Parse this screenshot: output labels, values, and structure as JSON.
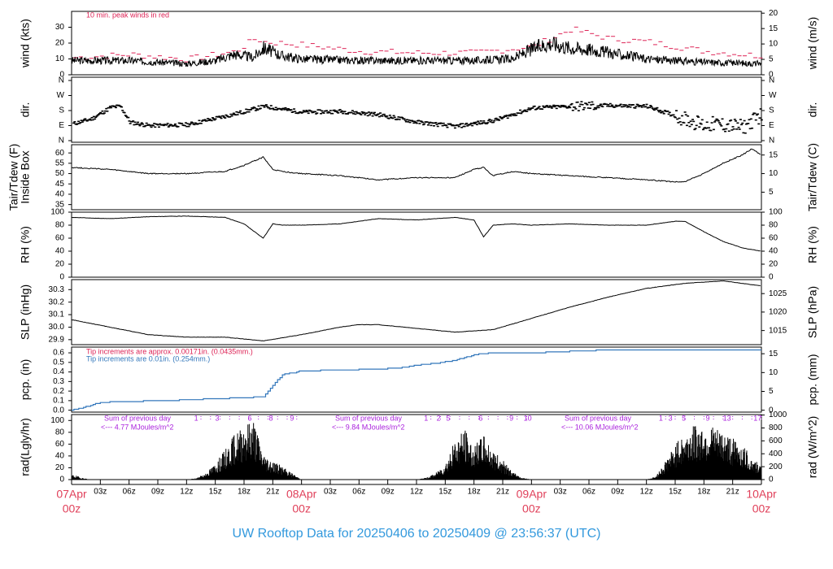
{
  "title": "UW Rooftop Data for 20250406  to  20250409 @ 23:56:37  (UTC)",
  "colors": {
    "peak": "#dd2255",
    "trace": "#000000",
    "precip": "#3377bb",
    "rad_note": "#aa22dd",
    "date": "#e0405a",
    "title": "#3399dd"
  },
  "chart_data": {
    "type": "line",
    "x_axis": {
      "range": [
        "2025-04-07T00:00Z",
        "2025-04-10T00:00Z"
      ],
      "hour_ticks": [
        "03z",
        "06z",
        "09z",
        "12z",
        "15z",
        "18z",
        "21z",
        "03z",
        "06z",
        "09z",
        "12z",
        "15z",
        "18z",
        "21z",
        "03z",
        "06z",
        "09z",
        "12z",
        "15z",
        "18z",
        "21z"
      ],
      "date_labels": [
        {
          "date": "07Apr",
          "hour": "00z"
        },
        {
          "date": "08Apr",
          "hour": "00z"
        },
        {
          "date": "09Apr",
          "hour": "00z"
        },
        {
          "date": "10Apr",
          "hour": "00z"
        }
      ]
    },
    "panels": [
      {
        "id": "wind",
        "ylabel_left": "wind (kts)",
        "ylabel_right": "wind (m/s)",
        "ylim_left": [
          0,
          40
        ],
        "ticks_left": [
          "0",
          "10",
          "20",
          "30"
        ],
        "ticks_right": [
          "0",
          "5",
          "10",
          "15",
          "20"
        ],
        "note": "10 min. peak winds in red",
        "series": [
          {
            "name": "10 min. peak winds",
            "x_hours": [
              0,
              6,
              12,
              17,
              19,
              20,
              24,
              30,
              36,
              42,
              48,
              52,
              54,
              56,
              60,
              66,
              70,
              76,
              72
            ],
            "y": [
              10,
              12,
              9,
              14,
              22,
              20,
              18,
              14,
              13,
              13,
              17,
              28,
              25,
              22,
              20,
              14,
              12,
              12,
              11
            ]
          },
          {
            "x_hours": [
              0,
              6,
              12,
              15,
              17,
              19,
              20,
              22,
              24,
              30,
              36,
              42,
              46,
              48,
              50,
              52,
              54,
              56,
              60,
              66,
              72
            ],
            "y": [
              9,
              9,
              7,
              9,
              13,
              11,
              17,
              12,
              10,
              9,
              9,
              9,
              10,
              16,
              20,
              17,
              16,
              14,
              10,
              8,
              7
            ]
          }
        ]
      },
      {
        "id": "dir",
        "ylabel_left": "dir.",
        "ylabel_right": "dir.",
        "ticks_left": [
          "N",
          "E",
          "S",
          "W",
          "N"
        ],
        "ticks_right": [
          "N",
          "E",
          "S",
          "W",
          "N"
        ],
        "series": [
          {
            "x_hours": [
              0,
              2,
              4,
              5,
              6,
              8,
              12,
              17,
              20,
              24,
              28,
              32,
              36,
              40,
              44,
              48,
              52,
              56,
              60,
              66,
              67,
              70,
              72
            ],
            "y_deg": [
              100,
              130,
              200,
              205,
              110,
              90,
              95,
              160,
              205,
              170,
              175,
              155,
              110,
              85,
              120,
              195,
              205,
              210,
              205,
              90,
              100,
              80,
              160
            ]
          }
        ]
      },
      {
        "id": "temp",
        "ylabel_left": "Tair/Tdew (F)\nInside Box",
        "ylabel_right": "Tair/Tdew (C)",
        "ylim_left": [
          32.5,
          64
        ],
        "ticks_left": [
          "35",
          "40",
          "45",
          "50",
          "55",
          "60"
        ],
        "ticks_right": [
          "5",
          "10",
          "15"
        ],
        "series": [
          {
            "x_hours": [
              0,
              4,
              8,
              12,
              16,
              18,
              20,
              21,
              22,
              24,
              28,
              32,
              36,
              40,
              42,
              43,
              44,
              46,
              48,
              52,
              56,
              60,
              63,
              64,
              66,
              68,
              70,
              71,
              72
            ],
            "y": [
              53,
              52,
              50,
              50,
              51,
              54,
              58,
              52,
              51,
              50,
              49,
              47,
              48,
              48,
              52,
              53,
              49,
              51,
              50,
              49,
              48,
              47,
              46,
              46,
              50,
              55,
              59,
              62,
              59
            ]
          }
        ]
      },
      {
        "id": "rh",
        "ylabel_left": "RH (%)",
        "ylabel_right": "RH (%)",
        "ylim_left": [
          0,
          100
        ],
        "ticks_left": [
          "0",
          "20",
          "40",
          "60",
          "80",
          "100"
        ],
        "ticks_right": [
          "0",
          "20",
          "40",
          "60",
          "80",
          "100"
        ],
        "series": [
          {
            "x_hours": [
              0,
              4,
              8,
              12,
              16,
              18,
              20,
              21,
              22,
              24,
              28,
              32,
              36,
              40,
              42,
              43,
              44,
              46,
              48,
              52,
              56,
              60,
              63,
              64,
              66,
              68,
              70,
              72
            ],
            "y": [
              92,
              90,
              93,
              94,
              92,
              82,
              60,
              82,
              80,
              80,
              82,
              90,
              88,
              92,
              88,
              62,
              80,
              82,
              80,
              82,
              80,
              80,
              86,
              86,
              70,
              55,
              45,
              40
            ]
          }
        ]
      },
      {
        "id": "slp",
        "ylabel_left": "SLP (inHg)",
        "ylabel_right": "SLP (hPa)",
        "ylim_left": [
          29.86,
          30.38
        ],
        "ticks_left": [
          "29.9",
          "30.0",
          "30.1",
          "30.2",
          "30.3"
        ],
        "ticks_right": [
          "1015",
          "1020",
          "1025"
        ],
        "series": [
          {
            "x_hours": [
              0,
              4,
              8,
              12,
              16,
              20,
              24,
              28,
              30,
              32,
              36,
              40,
              42,
              44,
              48,
              52,
              56,
              60,
              64,
              68,
              70,
              72
            ],
            "y": [
              30.06,
              30.0,
              29.94,
              29.92,
              29.92,
              29.89,
              29.94,
              30.0,
              30.02,
              30.02,
              29.99,
              29.96,
              29.97,
              29.98,
              30.07,
              30.16,
              30.24,
              30.31,
              30.35,
              30.37,
              30.35,
              30.33
            ]
          }
        ]
      },
      {
        "id": "pcp",
        "ylabel_left": "pcp. (in)",
        "ylabel_right": "pcp. (mm)",
        "ylim_left": [
          -0.02,
          0.66
        ],
        "ticks_left": [
          "0.0",
          "0.1",
          "0.2",
          "0.3",
          "0.4",
          "0.5",
          "0.6"
        ],
        "ticks_right": [
          "0",
          "5",
          "10",
          "15"
        ],
        "notes": [
          "Tip increments are approx. 0.00171in. (0.0435mm.)",
          "Tip increments are 0.01in. (0.254mm.)"
        ],
        "series": [
          {
            "name": "precip",
            "x_hours": [
              0,
              1,
              2,
              3,
              5,
              10,
              15,
              18,
              20,
              21,
              22,
              24,
              28,
              32,
              34,
              36,
              38,
              40,
              41,
              42,
              44,
              48,
              56,
              64,
              72
            ],
            "y": [
              0,
              0.02,
              0.05,
              0.08,
              0.09,
              0.1,
              0.12,
              0.13,
              0.14,
              0.26,
              0.37,
              0.41,
              0.42,
              0.43,
              0.44,
              0.47,
              0.49,
              0.52,
              0.55,
              0.58,
              0.6,
              0.6,
              0.63,
              0.63,
              0.63
            ]
          }
        ]
      },
      {
        "id": "rad",
        "ylabel_left": "rad(Lgly/hr)",
        "ylabel_right": "rad (W/m^2)",
        "ylim_left": [
          0,
          110
        ],
        "ticks_left": [
          "0",
          "20",
          "40",
          "60",
          "80",
          "100"
        ],
        "ticks_right": [
          "0",
          "200",
          "400",
          "600",
          "800",
          "1000"
        ],
        "notes": [
          {
            "day": 0,
            "line1": "Sum of previous day",
            "line2": "<--- 4.77 MJoules/m^2"
          },
          {
            "day": 1,
            "line1": "Sum of previous day",
            "line2": "<--- 9.84 MJoules/m^2"
          },
          {
            "day": 2,
            "line1": "Sum of previous day",
            "line2": "<--- 10.06 MJoules/m^2"
          }
        ],
        "hour_marks": [
          {
            "label": "1",
            "hour": 13.0
          },
          {
            "label": "3",
            "hour": 15.2
          },
          {
            "label": "6",
            "hour": 18.6
          },
          {
            "label": "8",
            "hour": 20.8
          },
          {
            "label": "9",
            "hour": 23.0
          },
          {
            "label": "1",
            "hour": 37.0
          },
          {
            "label": "2",
            "hour": 38.3
          },
          {
            "label": "5",
            "hour": 39.3
          },
          {
            "label": "6",
            "hour": 42.7
          },
          {
            "label": "9",
            "hour": 45.9
          },
          {
            "label": "10",
            "hour": 47.6
          },
          {
            "label": "1",
            "hour": 61.5
          },
          {
            "label": "3",
            "hour": 62.5
          },
          {
            "label": "5",
            "hour": 63.9
          },
          {
            "label": "9",
            "hour": 66.4
          },
          {
            "label": "13",
            "hour": 68.4
          },
          {
            "label": "17",
            "hour": 71.6
          }
        ],
        "series": [
          {
            "x_hours": [
              0,
              0.5,
              1,
              2,
              12,
              13,
              14,
              15,
              16,
              17,
              18,
              19,
              20,
              21,
              22,
              23,
              24,
              36,
              37,
              38,
              39,
              40,
              41,
              42,
              43,
              44,
              45,
              46,
              47,
              48,
              60,
              61,
              62,
              63,
              64,
              65,
              66,
              67,
              68,
              69,
              70,
              71,
              72
            ],
            "y": [
              8,
              6,
              3,
              0,
              0,
              2,
              10,
              25,
              45,
              70,
              85,
              95,
              40,
              30,
              20,
              10,
              0,
              0,
              3,
              10,
              25,
              60,
              80,
              50,
              70,
              45,
              30,
              12,
              3,
              0,
              0,
              5,
              30,
              55,
              70,
              85,
              85,
              80,
              75,
              65,
              55,
              35,
              20
            ]
          }
        ]
      }
    ]
  }
}
